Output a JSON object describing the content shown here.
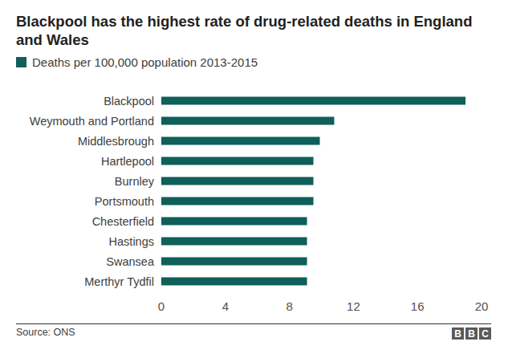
{
  "chart_data": {
    "type": "bar",
    "orientation": "horizontal",
    "title": "Blackpool has the highest rate of drug-related deaths in England and Wales",
    "categories": [
      "Blackpool",
      "Weymouth and Portland",
      "Middlesbrough",
      "Hartlepool",
      "Burnley",
      "Portsmouth",
      "Chesterfield",
      "Hastings",
      "Swansea",
      "Merthyr Tydfil"
    ],
    "series": [
      {
        "name": "Deaths per 100,000 population 2013-2015",
        "color": "#0f5f5a",
        "values": [
          19.0,
          10.8,
          9.9,
          9.5,
          9.5,
          9.5,
          9.1,
          9.1,
          9.1,
          9.1
        ]
      }
    ],
    "xlim": [
      0,
      20
    ],
    "xticks": [
      0,
      4,
      8,
      12,
      16,
      20
    ],
    "grid": false,
    "legend": "top-left",
    "source": "Source: ONS",
    "logo": "BBC"
  }
}
